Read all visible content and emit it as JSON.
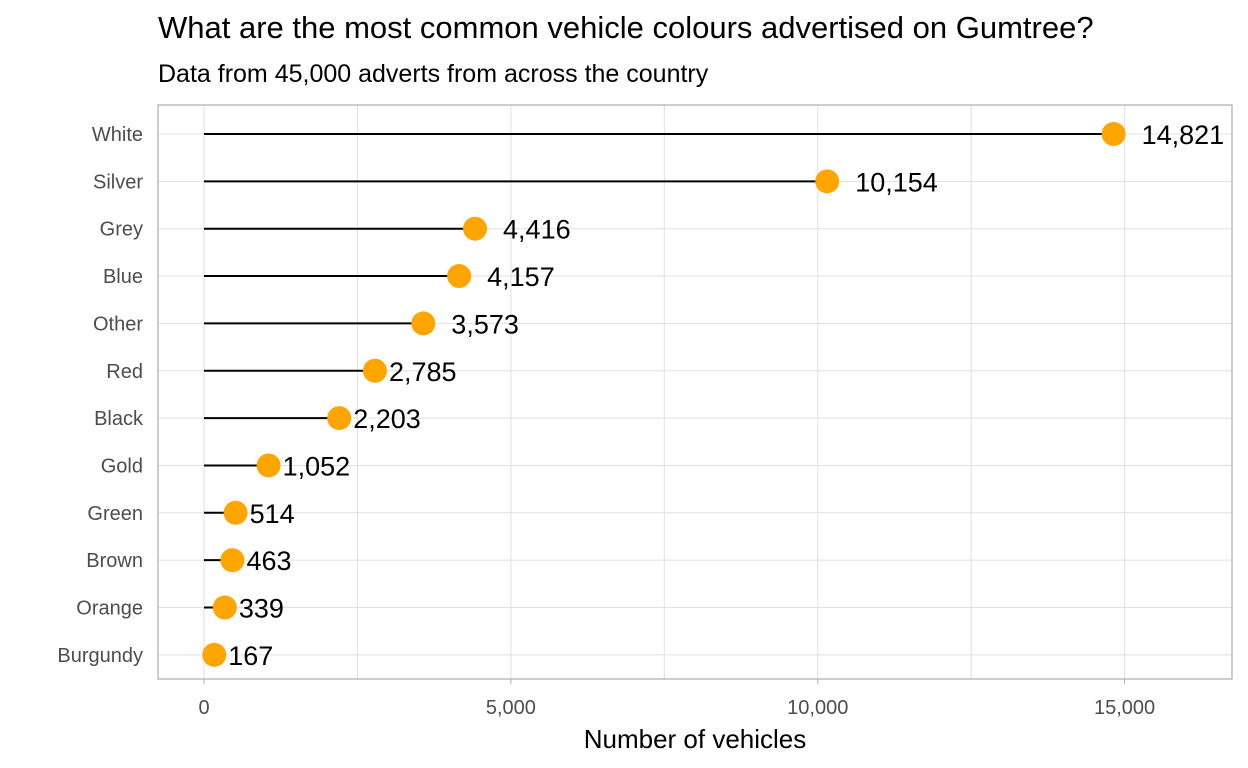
{
  "chart_data": {
    "type": "lollipop",
    "title": "What are the most common vehicle colours advertised on Gumtree?",
    "subtitle": "Data from 45,000 adverts from across the country",
    "xlabel": "Number of vehicles",
    "ylabel": "",
    "xlim": [
      -750,
      16750
    ],
    "x_ticks": [
      0,
      5000,
      10000,
      15000
    ],
    "x_tick_labels": [
      "0",
      "5,000",
      "10,000",
      "15,000"
    ],
    "grid": true,
    "categories": [
      "White",
      "Silver",
      "Grey",
      "Blue",
      "Other",
      "Red",
      "Black",
      "Gold",
      "Green",
      "Brown",
      "Orange",
      "Burgundy"
    ],
    "values": [
      14821,
      10154,
      4416,
      4157,
      3573,
      2785,
      2203,
      1052,
      514,
      463,
      339,
      167
    ],
    "value_labels": [
      "14,821",
      "10,154",
      "4,416",
      "4,157",
      "3,573",
      "2,785",
      "2,203",
      "1,052",
      "514",
      "463",
      "339",
      "167"
    ],
    "point_color": "#FFA500",
    "line_color": "#000000"
  }
}
